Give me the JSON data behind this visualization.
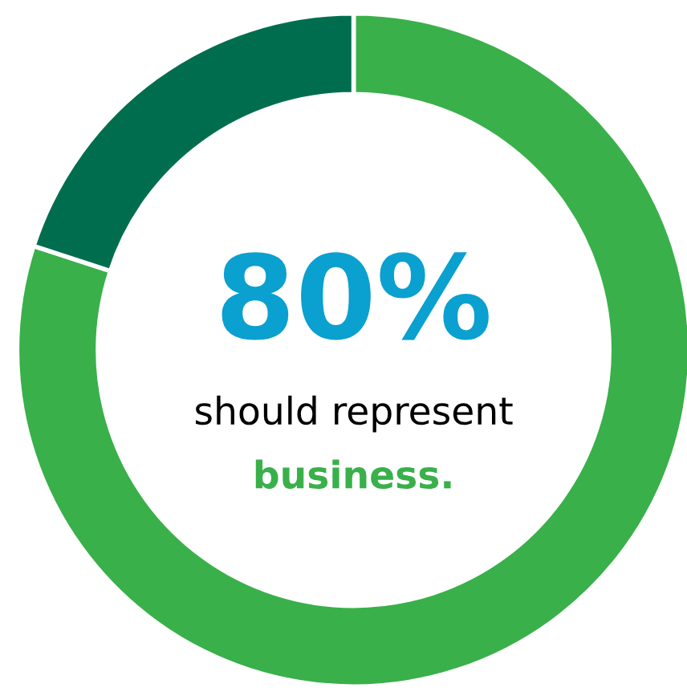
{
  "chart_data": {
    "type": "donut",
    "categories": [
      null,
      null
    ],
    "values": [
      80,
      20
    ],
    "colors": [
      "#39b04a",
      "#006e4e"
    ],
    "annotations": [
      "80%",
      "should represent",
      "business."
    ]
  }
}
